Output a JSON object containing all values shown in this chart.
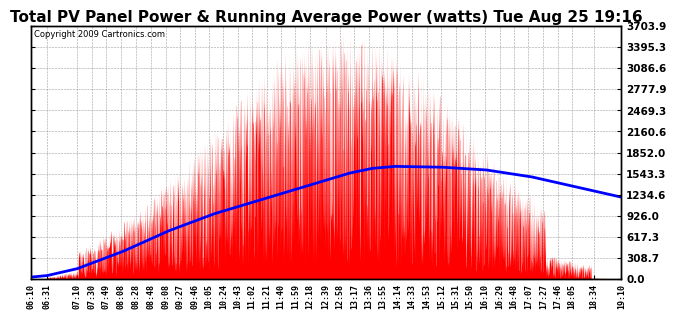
{
  "title": "Total PV Panel Power & Running Average Power (watts) Tue Aug 25 19:16",
  "copyright": "Copyright 2009 Cartronics.com",
  "yticks": [
    0.0,
    308.7,
    617.3,
    926.0,
    1234.6,
    1543.3,
    1852.0,
    2160.6,
    2469.3,
    2777.9,
    3086.6,
    3395.3,
    3703.9
  ],
  "ymax": 3703.9,
  "ymin": 0.0,
  "bg_color": "#ffffff",
  "grid_color": "#888888",
  "fill_color": "#ff0000",
  "line_color": "#0000ff",
  "title_fontsize": 11,
  "xtick_labels": [
    "06:10",
    "06:31",
    "07:10",
    "07:30",
    "07:49",
    "08:08",
    "08:28",
    "08:48",
    "09:08",
    "09:27",
    "09:46",
    "10:05",
    "10:24",
    "10:43",
    "11:02",
    "11:21",
    "11:40",
    "11:59",
    "12:18",
    "12:39",
    "12:58",
    "13:17",
    "13:36",
    "13:55",
    "14:14",
    "14:33",
    "14:53",
    "15:12",
    "15:31",
    "15:50",
    "16:10",
    "16:29",
    "16:48",
    "17:07",
    "17:27",
    "17:46",
    "18:05",
    "18:34",
    "19:10"
  ],
  "ra_x_min": [
    0,
    20,
    60,
    120,
    180,
    240,
    300,
    360,
    420,
    450,
    480,
    540,
    600,
    660,
    720,
    780
  ],
  "ra_y": [
    30,
    50,
    150,
    400,
    700,
    950,
    1150,
    1350,
    1550,
    1620,
    1650,
    1640,
    1600,
    1500,
    1350,
    1200
  ]
}
